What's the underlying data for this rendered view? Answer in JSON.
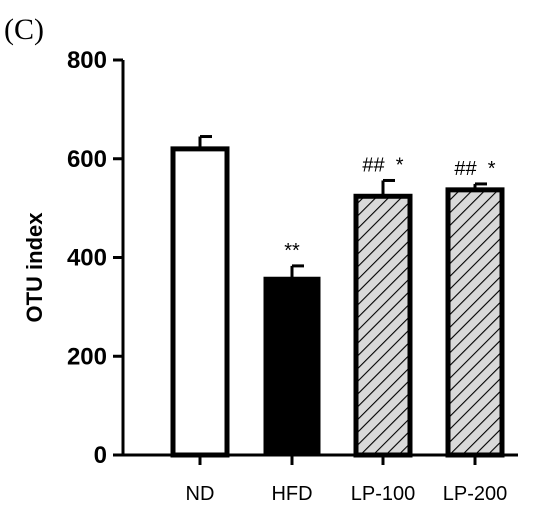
{
  "panel_label": "(C)",
  "chart_data": {
    "type": "bar",
    "categories": [
      "ND",
      "HFD",
      "LP-100",
      "LP-200"
    ],
    "values": [
      620,
      358,
      524,
      537
    ],
    "errors": [
      25,
      25,
      32,
      12
    ],
    "fills": [
      "white",
      "black",
      "hatched",
      "hatched"
    ],
    "annotations": [
      "",
      "**",
      "##  *",
      "##  *"
    ],
    "xlabel": "",
    "ylabel": "OTU index",
    "ylim": [
      0,
      800
    ],
    "yticks": [
      0,
      200,
      400,
      600,
      800
    ],
    "grid": false,
    "colors": {
      "bar_edge": "#000000",
      "hatch_bg": "#d9d9d9",
      "hatch_line": "#000000",
      "solid": "#000000",
      "white": "#ffffff"
    }
  }
}
